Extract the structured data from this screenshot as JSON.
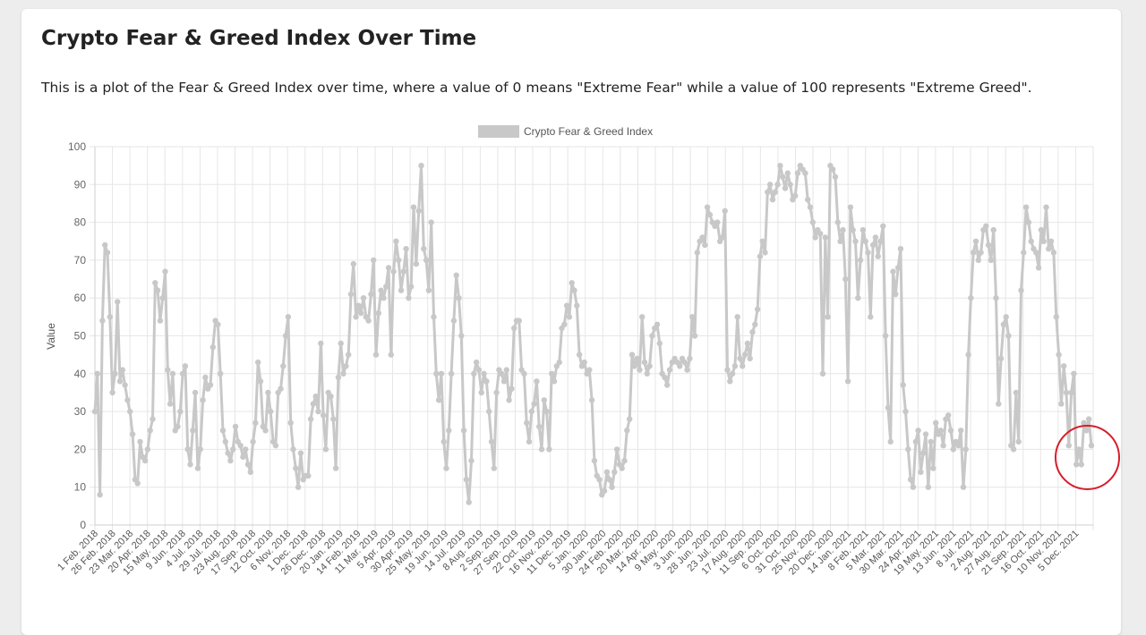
{
  "page": {
    "title": "Crypto Fear & Greed Index Over Time",
    "description": "This is a plot of the Fear & Greed Index over time, where a value of 0 means \"Extreme Fear\" while a value of 100 represents \"Extreme Greed\"."
  },
  "chart_data": {
    "type": "line",
    "legend": {
      "label": "Crypto Fear & Greed Index",
      "position": "top"
    },
    "ylabel": "Value",
    "xlabel": "",
    "ylim": [
      0,
      100
    ],
    "y_ticks": [
      0,
      10,
      20,
      30,
      40,
      50,
      60,
      70,
      80,
      90,
      100
    ],
    "grid": true,
    "series_color": "#c8c8c8",
    "annotation": {
      "type": "circle",
      "color": "#d81d2a",
      "around": "latest values (early Dec 2021)"
    },
    "x_tick_labels": [
      "1 Feb. 2018",
      "26 Feb. 2018",
      "23 Mar. 2018",
      "20 Apr. 2018",
      "15 May. 2018",
      "9 Jun. 2018",
      "4 Jul. 2018",
      "29 Jul. 2018",
      "23 Aug. 2018",
      "17 Sep. 2018",
      "12 Oct. 2018",
      "6 Nov. 2018",
      "1 Dec. 2018",
      "26 Dec. 2018",
      "20 Jan. 2019",
      "14 Feb. 2019",
      "11 Mar. 2019",
      "5 Apr. 2019",
      "30 Apr. 2019",
      "25 May. 2019",
      "19 Jun. 2019",
      "14 Jul. 2019",
      "8 Aug. 2019",
      "2 Sep. 2019",
      "27 Sep. 2019",
      "22 Oct. 2019",
      "16 Nov. 2019",
      "11 Dec. 2019",
      "5 Jan. 2020",
      "30 Jan. 2020",
      "24 Feb. 2020",
      "20 Mar. 2020",
      "14 Apr. 2020",
      "9 May. 2020",
      "3 Jun. 2020",
      "28 Jun. 2020",
      "23 Jul. 2020",
      "17 Aug. 2020",
      "11 Sep. 2020",
      "6 Oct. 2020",
      "31 Oct. 2020",
      "25 Nov. 2020",
      "20 Dec. 2020",
      "14 Jan. 2021",
      "8 Feb. 2021",
      "5 Mar. 2021",
      "30 Mar. 2021",
      "24 Apr. 2021",
      "19 May. 2021",
      "13 Jun. 2021",
      "8 Jul. 2021",
      "2 Aug. 2021",
      "27 Aug. 2021",
      "21 Sep. 2021",
      "16 Oct. 2021",
      "10 Nov. 2021",
      "5 Dec. 2021"
    ],
    "values": [
      30,
      40,
      8,
      54,
      74,
      72,
      55,
      35,
      40,
      59,
      38,
      41,
      37,
      33,
      30,
      24,
      12,
      11,
      22,
      18,
      17,
      20,
      25,
      28,
      64,
      62,
      54,
      60,
      67,
      41,
      32,
      40,
      25,
      26,
      30,
      40,
      42,
      20,
      16,
      25,
      35,
      15,
      20,
      33,
      39,
      36,
      37,
      47,
      54,
      53,
      40,
      25,
      22,
      19,
      17,
      20,
      26,
      22,
      21,
      18,
      20,
      16,
      14,
      22,
      27,
      43,
      38,
      26,
      25,
      35,
      30,
      22,
      21,
      35,
      36,
      42,
      50,
      55,
      27,
      20,
      15,
      10,
      19,
      12,
      13,
      13,
      28,
      32,
      34,
      30,
      48,
      29,
      20,
      35,
      34,
      28,
      15,
      39,
      48,
      40,
      42,
      45,
      61,
      69,
      55,
      58,
      56,
      60,
      55,
      54,
      61,
      70,
      45,
      56,
      62,
      60,
      63,
      68,
      45,
      67,
      75,
      70,
      62,
      67,
      73,
      60,
      63,
      84,
      69,
      83,
      95,
      73,
      70,
      62,
      80,
      55,
      40,
      33,
      40,
      22,
      15,
      25,
      40,
      54,
      66,
      60,
      50,
      25,
      12,
      6,
      17,
      40,
      43,
      41,
      35,
      40,
      38,
      30,
      22,
      15,
      35,
      41,
      40,
      38,
      41,
      33,
      36,
      52,
      54,
      54,
      41,
      40,
      27,
      22,
      30,
      32,
      38,
      26,
      20,
      33,
      30,
      20,
      40,
      38,
      42,
      43,
      52,
      53,
      58,
      55,
      64,
      62,
      58,
      45,
      42,
      43,
      40,
      41,
      33,
      17,
      13,
      12,
      8,
      9,
      14,
      12,
      10,
      14,
      20,
      16,
      15,
      17,
      25,
      28,
      45,
      42,
      44,
      41,
      55,
      43,
      40,
      42,
      50,
      52,
      53,
      48,
      40,
      39,
      37,
      41,
      43,
      44,
      43,
      42,
      44,
      43,
      41,
      44,
      55,
      50,
      72,
      75,
      76,
      74,
      84,
      82,
      80,
      79,
      80,
      75,
      76,
      83,
      41,
      38,
      40,
      42,
      55,
      44,
      42,
      45,
      48,
      44,
      51,
      53,
      57,
      71,
      75,
      72,
      88,
      90,
      86,
      88,
      90,
      95,
      92,
      89,
      93,
      90,
      86,
      87,
      93,
      95,
      94,
      93,
      86,
      84,
      80,
      76,
      78,
      77,
      40,
      76,
      55,
      95,
      94,
      92,
      80,
      75,
      78,
      65,
      38,
      84,
      78,
      75,
      60,
      70,
      78,
      75,
      72,
      55,
      74,
      76,
      71,
      75,
      79,
      50,
      31,
      22,
      67,
      61,
      68,
      73,
      37,
      30,
      20,
      12,
      10,
      22,
      25,
      14,
      19,
      24,
      10,
      22,
      15,
      27,
      24,
      25,
      21,
      28,
      29,
      25,
      20,
      22,
      21,
      25,
      10,
      20,
      45,
      60,
      72,
      75,
      70,
      72,
      78,
      79,
      74,
      70,
      78,
      60,
      32,
      44,
      53,
      55,
      50,
      21,
      20,
      35,
      22,
      62,
      72,
      84,
      80,
      75,
      73,
      72,
      68,
      78,
      75,
      84,
      73,
      75,
      72,
      55,
      45,
      32,
      42,
      35,
      21,
      35,
      40,
      16,
      20,
      16,
      27,
      25,
      28,
      21
    ]
  }
}
